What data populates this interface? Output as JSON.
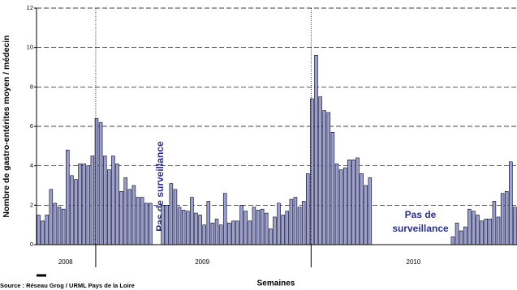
{
  "chart_data": {
    "type": "bar",
    "y_label": "Nombre de gastro-entérites moyen / médecin",
    "x_label": "Semaines",
    "source": "Source : Réseau Grog / URML Pays de la Loire",
    "years": [
      "2008",
      "2009",
      "2010"
    ],
    "annotations": [
      "Pas de surveillance",
      "Pas de",
      "surveillance"
    ],
    "color": "#9a9fd8",
    "ylim": [
      0,
      12
    ],
    "yticks": [
      0,
      2,
      4,
      6,
      8,
      10,
      12
    ],
    "grid": true,
    "values": [
      1.5,
      1.2,
      1.5,
      2.8,
      2.1,
      1.9,
      1.8,
      4.8,
      3.5,
      3.3,
      4.1,
      4.1,
      4.0,
      4.5,
      6.4,
      6.2,
      4.5,
      3.8,
      4.5,
      4.1,
      2.7,
      3.4,
      2.8,
      3.0,
      2.4,
      2.4,
      2.1,
      2.1,
      null,
      null,
      2.0,
      2.0,
      3.1,
      2.8,
      1.9,
      1.75,
      1.7,
      2.4,
      1.6,
      1.5,
      1.0,
      2.2,
      1.1,
      1.3,
      1.0,
      2.6,
      1.1,
      1.2,
      1.2,
      2.0,
      1.7,
      1.2,
      1.9,
      1.75,
      1.8,
      1.6,
      0.8,
      1.4,
      2.1,
      1.5,
      1.7,
      2.3,
      2.4,
      1.9,
      2.2,
      3.6,
      7.4,
      9.6,
      7.5,
      6.8,
      6.7,
      5.7,
      4.1,
      3.8,
      3.9,
      4.3,
      4.3,
      4.4,
      3.6,
      3.0,
      3.4,
      null,
      null,
      null,
      null,
      null,
      null,
      null,
      null,
      null,
      null,
      null,
      null,
      null,
      null,
      null,
      null,
      null,
      null,
      null,
      0.4,
      1.1,
      0.7,
      0.9,
      1.8,
      1.7,
      1.5,
      1.2,
      1.3,
      1.3,
      2.2,
      1.4,
      2.6,
      2.7,
      4.2,
      1.9
    ]
  }
}
